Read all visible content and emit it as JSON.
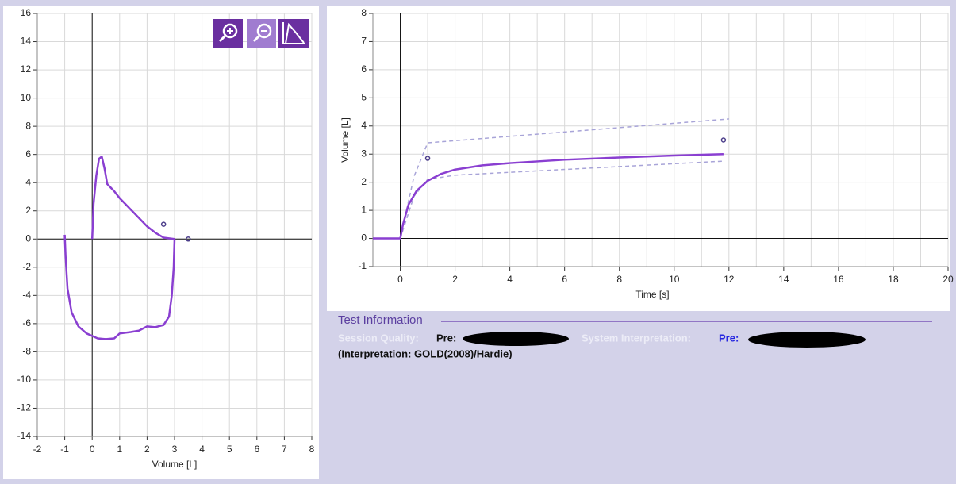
{
  "chart_data": [
    {
      "type": "line",
      "xlabel": "Volume [L]",
      "xlim": [
        -2,
        8
      ],
      "xticks": [
        -2,
        -1,
        0,
        1,
        2,
        3,
        4,
        5,
        6,
        7,
        8
      ],
      "ylim": [
        -14,
        16
      ],
      "yticks": [
        -14,
        -12,
        -10,
        -8,
        -6,
        -4,
        -2,
        0,
        2,
        4,
        6,
        8,
        10,
        12,
        14,
        16
      ],
      "grid": true,
      "series": [
        {
          "color": "#8a3fd1",
          "x": [
            0,
            0.05,
            0.15,
            0.25,
            0.35,
            0.45,
            0.55,
            0.8,
            1.0,
            1.5,
            2.0,
            2.3,
            2.6,
            3.0,
            2.97,
            2.9,
            2.8,
            2.6,
            2.3,
            2.0,
            1.7,
            1.4,
            1.0,
            0.8,
            0.5,
            0.2,
            -0.2,
            -0.5,
            -0.75,
            -0.9,
            -0.97,
            -1.0
          ],
          "values": [
            0,
            2.5,
            4.5,
            5.7,
            5.85,
            5.0,
            3.9,
            3.4,
            2.9,
            1.9,
            0.9,
            0.45,
            0.1,
            0,
            -2.0,
            -4.0,
            -5.5,
            -6.1,
            -6.25,
            -6.2,
            -6.5,
            -6.6,
            -6.7,
            -7.05,
            -7.1,
            -7.05,
            -6.7,
            -6.2,
            -5.2,
            -3.5,
            -1.2,
            0.3
          ]
        }
      ],
      "markers": {
        "color": "#4b3d8a",
        "x": [
          2.6,
          3.5
        ],
        "values": [
          1.05,
          0
        ]
      }
    },
    {
      "type": "line",
      "xlabel": "Time [s]",
      "ylabel": "Volume [L]",
      "xlim": [
        -1,
        20
      ],
      "xticks": [
        0,
        2,
        4,
        6,
        8,
        10,
        12,
        14,
        16,
        18,
        20
      ],
      "minor_xticks": [
        -1,
        1,
        3,
        5,
        7,
        9,
        11,
        13,
        15,
        17,
        19
      ],
      "ylim": [
        -1,
        8
      ],
      "yticks": [
        -1,
        0,
        1,
        2,
        3,
        4,
        5,
        6,
        7,
        8
      ],
      "grid": true,
      "series": [
        {
          "color": "#a8a4d8",
          "dash": true,
          "x": [
            0,
            0.5,
            1.0,
            12.0
          ],
          "values": [
            0,
            2.2,
            3.4,
            4.25
          ]
        },
        {
          "color": "#a8a4d8",
          "dash": true,
          "x": [
            0,
            0.5,
            1.0,
            2.0,
            11.8
          ],
          "values": [
            0,
            1.5,
            2.1,
            2.25,
            2.75
          ]
        },
        {
          "color": "#8a3fd1",
          "x": [
            -1,
            0,
            0.1,
            0.3,
            0.6,
            1.0,
            1.5,
            2,
            3,
            4,
            6,
            8,
            10,
            11.8
          ],
          "values": [
            0,
            0,
            0.5,
            1.2,
            1.7,
            2.05,
            2.3,
            2.45,
            2.6,
            2.68,
            2.8,
            2.88,
            2.95,
            3.0
          ]
        }
      ],
      "markers": {
        "color": "#4b3d8a",
        "x": [
          1.0,
          11.8
        ],
        "values": [
          2.85,
          3.5
        ]
      }
    }
  ],
  "test_info": {
    "title": "Test Information",
    "session_quality_label": "Session Quality:",
    "session_quality_pre": "Pre:",
    "system_interpretation_label": "System Interpretation:",
    "system_interpretation_pre": "Pre:",
    "interpretation_note": "(Interpretation: GOLD(2008)/Hardie)"
  }
}
